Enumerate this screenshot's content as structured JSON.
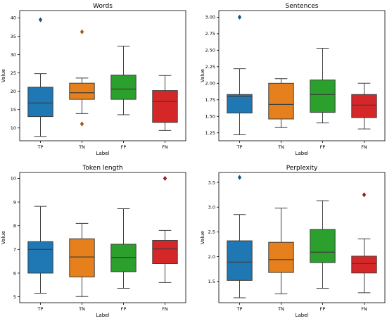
{
  "chart_data": [
    {
      "type": "box",
      "title": "Words",
      "xlabel": "Label",
      "ylabel": "Value",
      "categories": [
        "TP",
        "TN",
        "FP",
        "FN"
      ],
      "ylim": [
        6.5,
        42
      ],
      "yticks": [
        10,
        15,
        20,
        25,
        30,
        35,
        40
      ],
      "ytick_labels": [
        "10",
        "15",
        "20",
        "25",
        "30",
        "35",
        "40"
      ],
      "boxes": [
        {
          "label": "TP",
          "color": "#1f77b4",
          "whisker_low": 7.7,
          "q1": 13.1,
          "median": 16.8,
          "q3": 21.1,
          "whisker_high": 24.8,
          "outliers": [
            39.5
          ]
        },
        {
          "label": "TN",
          "color": "#e6801c",
          "whisker_low": 13.9,
          "q1": 17.8,
          "median": 19.6,
          "q3": 22.2,
          "whisker_high": 23.6,
          "outliers": [
            36.2,
            11.1
          ]
        },
        {
          "label": "FP",
          "color": "#2ca02c",
          "whisker_low": 13.6,
          "q1": 17.8,
          "median": 20.6,
          "q3": 24.4,
          "whisker_high": 32.3,
          "outliers": []
        },
        {
          "label": "FN",
          "color": "#d62728",
          "whisker_low": 9.3,
          "q1": 11.5,
          "median": 17.2,
          "q3": 20.2,
          "whisker_high": 24.3,
          "outliers": []
        }
      ]
    },
    {
      "type": "box",
      "title": "Sentences",
      "xlabel": "Label",
      "ylabel": "Value",
      "categories": [
        "TP",
        "TN",
        "FP",
        "FN"
      ],
      "ylim": [
        1.13,
        3.1
      ],
      "yticks": [
        1.25,
        1.5,
        1.75,
        2.0,
        2.25,
        2.5,
        2.75,
        3.0
      ],
      "ytick_labels": [
        "1.25",
        "1.50",
        "1.75",
        "2.00",
        "2.25",
        "2.50",
        "2.75",
        "3.00"
      ],
      "boxes": [
        {
          "label": "TP",
          "color": "#1f77b4",
          "whisker_low": 1.22,
          "q1": 1.55,
          "median": 1.8,
          "q3": 1.83,
          "whisker_high": 2.22,
          "outliers": [
            3.0
          ]
        },
        {
          "label": "TN",
          "color": "#e6801c",
          "whisker_low": 1.33,
          "q1": 1.46,
          "median": 1.68,
          "q3": 2.0,
          "whisker_high": 2.07,
          "outliers": []
        },
        {
          "label": "FP",
          "color": "#2ca02c",
          "whisker_low": 1.4,
          "q1": 1.56,
          "median": 1.83,
          "q3": 2.05,
          "whisker_high": 2.53,
          "outliers": []
        },
        {
          "label": "FN",
          "color": "#d62728",
          "whisker_low": 1.31,
          "q1": 1.48,
          "median": 1.67,
          "q3": 1.83,
          "whisker_high": 2.0,
          "outliers": []
        }
      ]
    },
    {
      "type": "box",
      "title": "Token length",
      "xlabel": "Label",
      "ylabel": "Value",
      "categories": [
        "TP",
        "TN",
        "FP",
        "FN"
      ],
      "ylim": [
        4.75,
        10.25
      ],
      "yticks": [
        5,
        6,
        7,
        8,
        9,
        10
      ],
      "ytick_labels": [
        "5",
        "6",
        "7",
        "8",
        "9",
        "10"
      ],
      "boxes": [
        {
          "label": "TP",
          "color": "#1f77b4",
          "whisker_low": 5.15,
          "q1": 6.0,
          "median": 7.0,
          "q3": 7.33,
          "whisker_high": 8.82,
          "outliers": []
        },
        {
          "label": "TN",
          "color": "#e6801c",
          "whisker_low": 5.01,
          "q1": 5.84,
          "median": 6.68,
          "q3": 7.45,
          "whisker_high": 8.1,
          "outliers": []
        },
        {
          "label": "FP",
          "color": "#2ca02c",
          "whisker_low": 5.36,
          "q1": 6.06,
          "median": 6.66,
          "q3": 7.22,
          "whisker_high": 8.72,
          "outliers": []
        },
        {
          "label": "FN",
          "color": "#d62728",
          "whisker_low": 5.6,
          "q1": 6.4,
          "median": 7.02,
          "q3": 7.38,
          "whisker_high": 7.8,
          "outliers": [
            10.0
          ]
        }
      ]
    },
    {
      "type": "box",
      "title": "Perplexity",
      "xlabel": "Label",
      "ylabel": "Value",
      "categories": [
        "TP",
        "TN",
        "FP",
        "FN"
      ],
      "ylim": [
        1.07,
        3.7
      ],
      "yticks": [
        1.5,
        2.0,
        2.5,
        3.0,
        3.5
      ],
      "ytick_labels": [
        "1.5",
        "2.0",
        "2.5",
        "3.0",
        "3.5"
      ],
      "boxes": [
        {
          "label": "TP",
          "color": "#1f77b4",
          "whisker_low": 1.17,
          "q1": 1.52,
          "median": 1.89,
          "q3": 2.32,
          "whisker_high": 2.85,
          "outliers": [
            3.6
          ]
        },
        {
          "label": "TN",
          "color": "#e6801c",
          "whisker_low": 1.25,
          "q1": 1.68,
          "median": 1.94,
          "q3": 2.29,
          "whisker_high": 2.98,
          "outliers": []
        },
        {
          "label": "FP",
          "color": "#2ca02c",
          "whisker_low": 1.36,
          "q1": 1.88,
          "median": 2.09,
          "q3": 2.55,
          "whisker_high": 3.13,
          "outliers": []
        },
        {
          "label": "FN",
          "color": "#d62728",
          "whisker_low": 1.27,
          "q1": 1.67,
          "median": 1.86,
          "q3": 2.01,
          "whisker_high": 2.36,
          "outliers": [
            3.25
          ]
        }
      ]
    }
  ]
}
